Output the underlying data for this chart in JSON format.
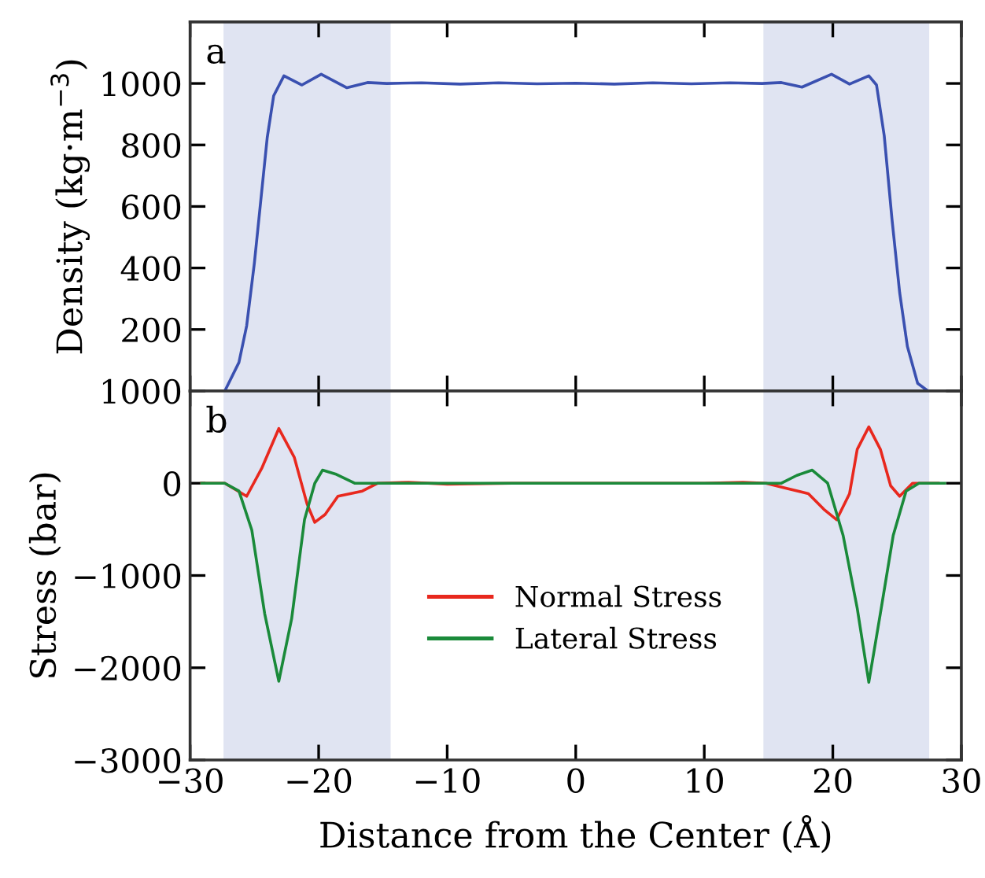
{
  "chart_data": [
    {
      "type": "line",
      "ylabel": "Density (kg·m$^{−3}$)",
      "annotations": [
        "a"
      ],
      "xlim": [
        -30,
        30
      ],
      "xticks": [
        -30,
        -20,
        -10,
        0,
        10,
        20,
        30
      ],
      "ylim": [
        0,
        1200
      ],
      "yticks": [
        200,
        400,
        600,
        800,
        1000
      ],
      "tick_labels": "y",
      "grid": false,
      "legend": false,
      "marker": "none",
      "line_style": "solid",
      "bands": [
        {
          "axis": "x",
          "from": -27.4,
          "to": -14.4,
          "color": "#e0e4f2"
        },
        {
          "axis": "x",
          "from": 14.6,
          "to": 27.5,
          "color": "#e0e4f2"
        }
      ],
      "series": [
        {
          "color": "#3a50b0",
          "x": [
            -27.3,
            -26.2,
            -25.6,
            -25.0,
            -24.5,
            -24.0,
            -23.5,
            -22.7,
            -21.3,
            -19.8,
            -17.8,
            -16.2,
            -14.7,
            -12,
            -9,
            -6,
            -3,
            0,
            3,
            6,
            9,
            12,
            14.5,
            16.0,
            17.6,
            19.9,
            21.3,
            22.8,
            23.4,
            24.0,
            24.6,
            25.2,
            25.8,
            26.6,
            27.4
          ],
          "values": [
            0,
            93,
            212,
            416,
            620,
            824,
            960,
            1025,
            995,
            1030,
            986,
            1003,
            1000,
            1002,
            998,
            1002,
            999,
            1001,
            998,
            1002,
            999,
            1002,
            1000,
            1003,
            988,
            1030,
            998,
            1025,
            995,
            830,
            560,
            320,
            145,
            25,
            0
          ]
        }
      ]
    },
    {
      "type": "line",
      "xlabel": "Distance from the Center (Å)",
      "ylabel": "Stress (bar)",
      "annotations": [
        "b"
      ],
      "xlim": [
        -30,
        30
      ],
      "xticks": [
        -30,
        -20,
        -10,
        0,
        10,
        20,
        30
      ],
      "ylim": [
        -3000,
        1000
      ],
      "yticks": [
        -3000,
        -2000,
        -1000,
        0,
        1000
      ],
      "grid": false,
      "legend": "center",
      "marker": "none",
      "line_style": "solid",
      "bands": [
        {
          "axis": "x",
          "from": -27.4,
          "to": -14.4,
          "color": "#e0e4f2"
        },
        {
          "axis": "x",
          "from": 14.6,
          "to": 27.5,
          "color": "#e0e4f2"
        }
      ],
      "series": [
        {
          "name": "Normal Stress",
          "color": "#e8281e",
          "x": [
            -29.1,
            -27.3,
            -25.6,
            -24.4,
            -23.1,
            -21.9,
            -20.9,
            -20.3,
            -19.5,
            -18.5,
            -16.6,
            -15.4,
            -13,
            -10,
            -5,
            0,
            5,
            10,
            13,
            14.8,
            16.4,
            18.1,
            19.3,
            20.3,
            21.3,
            21.9,
            22.8,
            23.7,
            24.5,
            25.2,
            26.2,
            28.2
          ],
          "values": [
            0,
            0,
            -141,
            170,
            593,
            283,
            -225,
            -424,
            -339,
            -141,
            -85,
            0,
            10,
            -10,
            0,
            0,
            0,
            0,
            10,
            0,
            -56,
            -113,
            -282,
            -395,
            -113,
            368,
            610,
            368,
            -28,
            -141,
            0,
            0
          ]
        },
        {
          "name": "Lateral Stress",
          "color": "#1a8a3a",
          "x": [
            -29.1,
            -27.3,
            -26.2,
            -25.2,
            -24.2,
            -23.1,
            -22.1,
            -21.1,
            -20.3,
            -19.7,
            -18.7,
            -17.2,
            -10,
            0,
            10,
            16.0,
            17.2,
            18.4,
            19.6,
            20.8,
            21.9,
            22.8,
            23.7,
            24.7,
            25.7,
            26.7,
            28.7
          ],
          "values": [
            0,
            0,
            -85,
            -508,
            -1412,
            -2146,
            -1469,
            -395,
            0,
            142,
            100,
            0,
            0,
            0,
            0,
            0,
            85,
            142,
            0,
            -565,
            -1356,
            -2158,
            -1412,
            -565,
            -85,
            0,
            0
          ]
        }
      ]
    }
  ]
}
